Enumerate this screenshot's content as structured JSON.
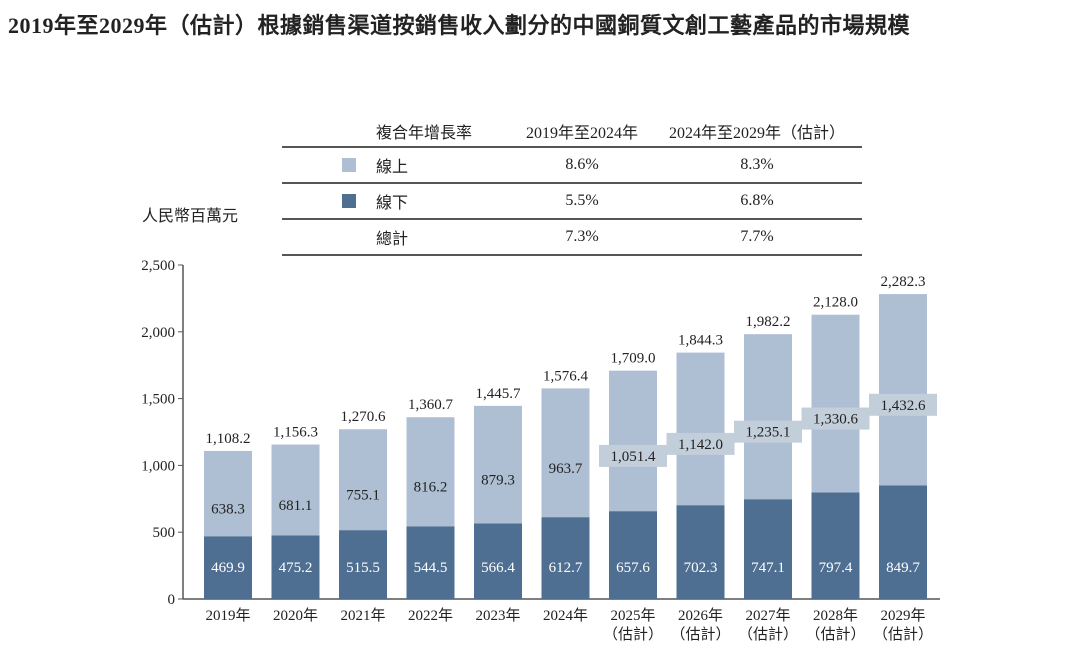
{
  "title": "2019年至2029年（估計）根據銷售渠道按銷售收入劃分的中國銅質文創工藝產品的市場規模",
  "cagr_table": {
    "header": [
      "複合年增長率",
      "2019年至2024年",
      "2024年至2029年（估計）"
    ],
    "rows": [
      {
        "label": "線上",
        "v1": "8.6%",
        "v2": "8.3%",
        "color": "#aebfd4"
      },
      {
        "label": "線下",
        "v1": "5.5%",
        "v2": "6.8%",
        "color": "#4e6f92"
      },
      {
        "label": "總計",
        "v1": "7.3%",
        "v2": "7.7%"
      }
    ]
  },
  "chart_data": {
    "type": "bar",
    "stacked": true,
    "ylabel": "人民幣百萬元",
    "ylim": [
      0,
      2500
    ],
    "yticks": [
      "0",
      "500",
      "1,000",
      "1,500",
      "2,000",
      "2,500"
    ],
    "categories": [
      "2019年",
      "2020年",
      "2021年",
      "2022年",
      "2023年",
      "2024年",
      "2025年\n（估計）",
      "2026年\n（估計）",
      "2027年\n（估計）",
      "2028年\n（估計）",
      "2029年\n（估計）"
    ],
    "series": [
      {
        "name": "線下",
        "color": "#4e6f92",
        "values": [
          469.9,
          475.2,
          515.5,
          544.5,
          566.4,
          612.7,
          657.6,
          702.3,
          747.1,
          797.4,
          849.7
        ],
        "labels": [
          "469.9",
          "475.2",
          "515.5",
          "544.5",
          "566.4",
          "612.7",
          "657.6",
          "702.3",
          "747.1",
          "797.4",
          "849.7"
        ]
      },
      {
        "name": "線上",
        "color": "#aebfd4",
        "values": [
          638.3,
          681.1,
          755.1,
          816.2,
          879.3,
          963.7,
          1051.4,
          1142.0,
          1235.1,
          1330.6,
          1432.6
        ],
        "labels": [
          "638.3",
          "681.1",
          "755.1",
          "816.2",
          "879.3",
          "963.7",
          "1,051.4",
          "1,142.0",
          "1,235.1",
          "1,330.6",
          "1,432.6"
        ]
      }
    ],
    "totals": [
      "1,108.2",
      "1,156.3",
      "1,270.6",
      "1,360.7",
      "1,445.7",
      "1,576.4",
      "1,709.0",
      "1,844.3",
      "1,982.2",
      "2,128.0",
      "2,282.3"
    ],
    "grid": false,
    "legend": "table-top"
  }
}
